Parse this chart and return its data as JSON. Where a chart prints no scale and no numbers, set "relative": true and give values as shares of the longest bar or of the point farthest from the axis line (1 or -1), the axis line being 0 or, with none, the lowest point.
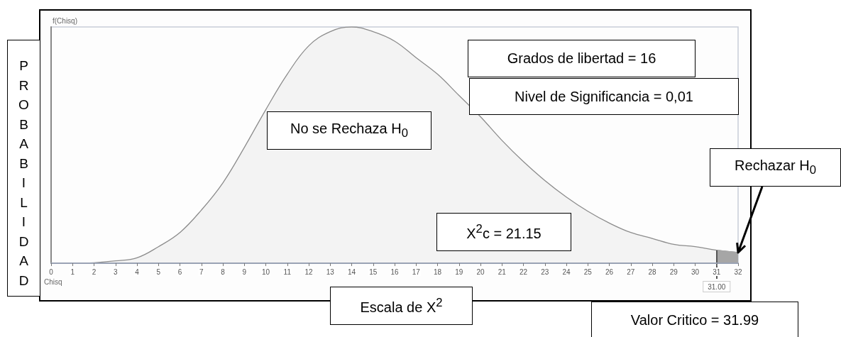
{
  "chart_data": {
    "type": "area",
    "ylabel": "PROBABILIDAD",
    "xlabel": "Escala de X$^{2}$",
    "relative": true,
    "xlim": [
      0,
      32
    ],
    "xticks": [
      0,
      1,
      2,
      3,
      4,
      5,
      6,
      7,
      8,
      9,
      10,
      11,
      12,
      13,
      14,
      15,
      16,
      17,
      18,
      19,
      20,
      21,
      22,
      23,
      24,
      25,
      26,
      27,
      28,
      29,
      30,
      31,
      32
    ],
    "series": [
      {
        "type": "area",
        "color": "#8c8c8c",
        "x": [
          0,
          1,
          2,
          3,
          4,
          5,
          6,
          7,
          8,
          9,
          10,
          11,
          12,
          13,
          14,
          15,
          16,
          17,
          18,
          19,
          20,
          21,
          22,
          23,
          24,
          25,
          26,
          27,
          28,
          29,
          30,
          31,
          32
        ],
        "values": [
          0,
          0,
          0.002,
          0.01,
          0.023,
          0.07,
          0.13,
          0.225,
          0.34,
          0.49,
          0.65,
          0.8,
          0.92,
          0.98,
          1,
          0.98,
          0.94,
          0.87,
          0.8,
          0.71,
          0.62,
          0.52,
          0.43,
          0.35,
          0.28,
          0.22,
          0.17,
          0.13,
          0.105,
          0.08,
          0.07,
          0.055,
          0.045
        ]
      },
      {
        "type": "area",
        "color": "#a6a6a6",
        "x": [
          31,
          32
        ],
        "values": [
          0.055,
          0.045
        ]
      }
    ],
    "ref_lines": [
      {
        "axis": "x",
        "value": 31,
        "label": "31.00",
        "color": "#555555"
      }
    ],
    "annotations": [
      "f(Chisq)",
      "Chisq",
      "Grados de libertad = 16",
      "Nivel de Significancia = 0,01",
      "No se Rechaza H$_{0}$",
      {
        "text": "Rechazar H$_{0}$",
        "x": 32,
        "y": 0.045
      },
      "X$^{2}$c = 21.15",
      "Valor Critico = 31.99"
    ],
    "grid": false,
    "marker": "none",
    "line_style": "solid"
  }
}
